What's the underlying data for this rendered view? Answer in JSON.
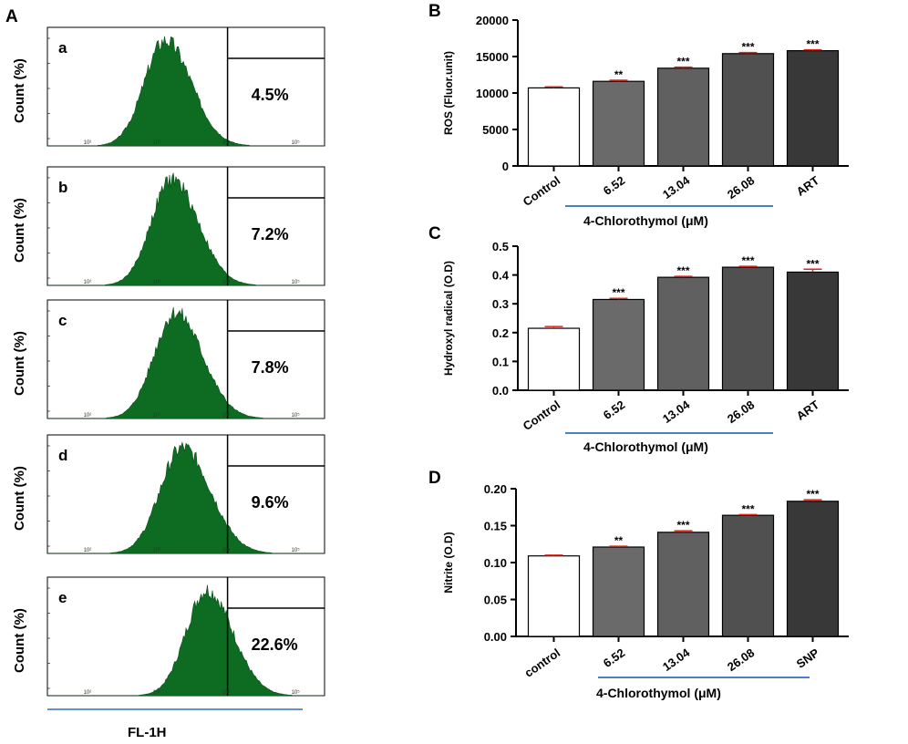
{
  "figure": {
    "panel_labels": {
      "A": "A",
      "B": "B",
      "C": "C",
      "D": "D"
    },
    "x_axis_label": "FL-1H"
  },
  "chart_data": [
    {
      "panel": "A",
      "type": "histogram",
      "ylabel": "Count (%)",
      "xlabel": "FL-1H",
      "x_scale": "log",
      "x_ticks": [
        "10²",
        "10³",
        "10⁴",
        "10⁵"
      ],
      "fill_color": "#0e6b22",
      "subplots": [
        {
          "label": "a",
          "gate_percent": "4.5%",
          "peak_log": 3.1,
          "spread": 0.3
        },
        {
          "label": "b",
          "gate_percent": "7.2%",
          "peak_log": 3.2,
          "spread": 0.3
        },
        {
          "label": "c",
          "gate_percent": "7.8%",
          "peak_log": 3.25,
          "spread": 0.31
        },
        {
          "label": "d",
          "gate_percent": "9.6%",
          "peak_log": 3.35,
          "spread": 0.32
        },
        {
          "label": "e",
          "gate_percent": "22.6%",
          "peak_log": 3.7,
          "spread": 0.3
        }
      ]
    },
    {
      "panel": "B",
      "type": "bar",
      "ylabel": "ROS (Fluor.unit)",
      "ylim": [
        0,
        20000
      ],
      "yticks": [
        "0",
        "5000",
        "10000",
        "15000",
        "20000"
      ],
      "categories": [
        "Control",
        "6.52",
        "13.04",
        "26.08",
        "ART"
      ],
      "values": [
        10700,
        11600,
        13400,
        15400,
        15800
      ],
      "errors": [
        150,
        150,
        150,
        150,
        120
      ],
      "significance": [
        "",
        "**",
        "***",
        "***",
        "***"
      ],
      "group_label": "4-Chlorothymol (μM)",
      "bar_colors": [
        "#ffffff",
        "#6a6a6a",
        "#606060",
        "#505050",
        "#383838"
      ]
    },
    {
      "panel": "C",
      "type": "bar",
      "ylabel": "Hydroxyl radical (O.D)",
      "ylim": [
        0,
        0.5
      ],
      "yticks": [
        "0.0",
        "0.1",
        "0.2",
        "0.3",
        "0.4",
        "0.5"
      ],
      "categories": [
        "Control",
        "6.52",
        "13.04",
        "26.08",
        "ART"
      ],
      "values": [
        0.215,
        0.315,
        0.392,
        0.427,
        0.41
      ],
      "errors": [
        0.006,
        0.004,
        0.003,
        0.003,
        0.01
      ],
      "significance": [
        "",
        "***",
        "***",
        "***",
        "***"
      ],
      "group_label": "4-Chlorothymol (μM)",
      "bar_colors": [
        "#ffffff",
        "#6a6a6a",
        "#606060",
        "#505050",
        "#383838"
      ]
    },
    {
      "panel": "D",
      "type": "bar",
      "ylabel": "Nitrite (O.D)",
      "ylim": [
        0,
        0.2
      ],
      "yticks": [
        "0.00",
        "0.05",
        "0.10",
        "0.15",
        "0.20"
      ],
      "categories": [
        "control",
        "6.52",
        "13.04",
        "26.08",
        "SNP"
      ],
      "values": [
        0.109,
        0.121,
        0.141,
        0.164,
        0.183
      ],
      "errors": [
        0.001,
        0.001,
        0.002,
        0.001,
        0.002
      ],
      "significance": [
        "",
        "**",
        "***",
        "***",
        "***"
      ],
      "group_label": "4-Chlorothymol (μM)",
      "bar_colors": [
        "#ffffff",
        "#6a6a6a",
        "#606060",
        "#505050",
        "#383838"
      ]
    }
  ]
}
